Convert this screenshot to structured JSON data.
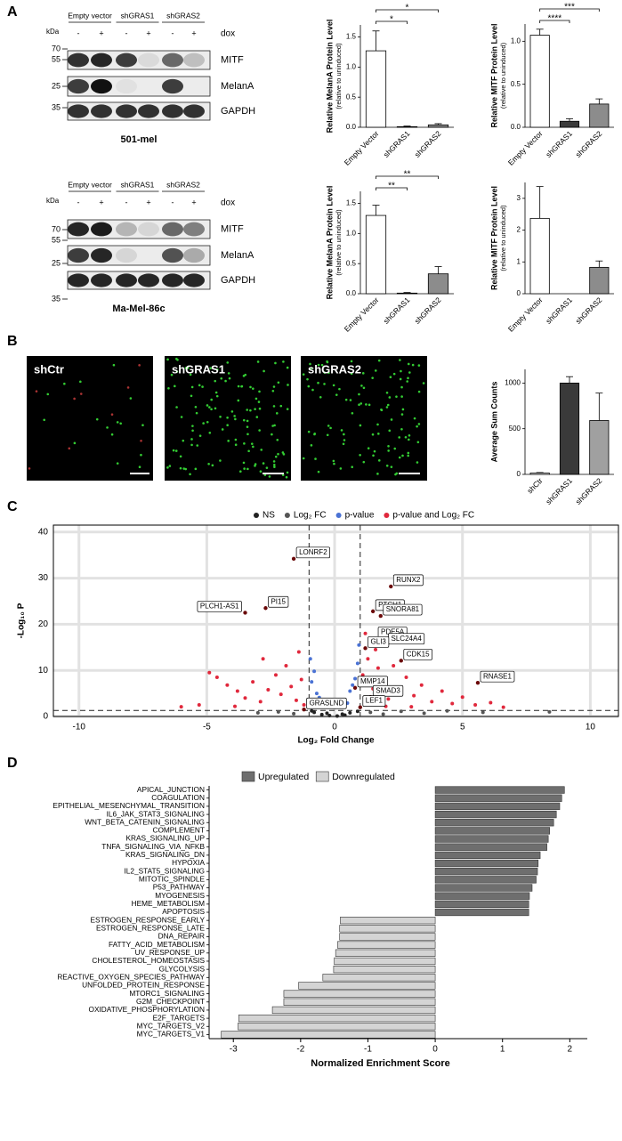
{
  "panels": [
    "A",
    "B",
    "C",
    "D"
  ],
  "blots": [
    {
      "groups": [
        "Empty vector",
        "shGRAS1",
        "shGRAS2"
      ],
      "dox_label": "dox",
      "dox": [
        "-",
        "+",
        "-",
        "+",
        "-",
        "+"
      ],
      "kda_label": "kDa",
      "markers": [
        70,
        55,
        25,
        35
      ],
      "proteins": [
        "MITF",
        "MelanA",
        "GAPDH"
      ],
      "cell_line": "501-mel"
    },
    {
      "groups": [
        "Empty vector",
        "shGRAS1",
        "shGRAS2"
      ],
      "dox_label": "dox",
      "dox": [
        "-",
        "+",
        "-",
        "+",
        "-",
        "+"
      ],
      "kda_label": "kDa",
      "markers": [
        70,
        55,
        25,
        35
      ],
      "proteins": [
        "MITF",
        "MelanA",
        "GAPDH"
      ],
      "cell_line": "Ma-Mel-86c"
    }
  ],
  "images": [
    "shCtr",
    "shGRAS1",
    "shGRAS2"
  ],
  "chart_data": [
    {
      "type": "bar",
      "ylabel": "Relative MelanA Protein Level",
      "ylabel_note": "(relative to uninduced)",
      "categories": [
        "Empty Vector",
        "shGRAS1",
        "shGRAS2"
      ],
      "values": [
        1.27,
        0.01,
        0.04
      ],
      "errors": [
        0.33,
        0.01,
        0.02
      ],
      "colors": [
        "#ffffff",
        "#3a3a3a",
        "#8c8c8c"
      ],
      "ylim": [
        0,
        1.7
      ],
      "yticks": [
        {
          "value": 0,
          "label": "0.0"
        },
        {
          "value": 0.5,
          "label": "0.5"
        },
        {
          "value": 1,
          "label": "1.0"
        },
        {
          "value": 1.5,
          "label": "1.5"
        }
      ],
      "significance": [
        {
          "label": "*",
          "between": [
            0,
            1
          ]
        },
        {
          "label": "*",
          "between": [
            0,
            2
          ]
        }
      ]
    },
    {
      "type": "bar",
      "ylabel": "Relative MITF Protein Level",
      "ylabel_note": "(relative to uninduced)",
      "categories": [
        "Empty Vector",
        "shGRAS1",
        "shGRAS2"
      ],
      "values": [
        1.07,
        0.07,
        0.27
      ],
      "errors": [
        0.07,
        0.03,
        0.06
      ],
      "colors": [
        "#ffffff",
        "#3a3a3a",
        "#8c8c8c"
      ],
      "ylim": [
        0,
        1.2
      ],
      "yticks": [
        {
          "value": 0,
          "label": "0.0"
        },
        {
          "value": 0.5,
          "label": "0.5"
        },
        {
          "value": 1,
          "label": "1.0"
        }
      ],
      "significance": [
        {
          "label": "****",
          "between": [
            0,
            1
          ]
        },
        {
          "label": "***",
          "between": [
            0,
            2
          ]
        }
      ]
    },
    {
      "type": "bar",
      "ylabel": "Relative MelanA Protein Level",
      "ylabel_note": "(relative to uninduced)",
      "categories": [
        "Empty Vector",
        "shGRAS1",
        "shGRAS2"
      ],
      "values": [
        1.3,
        0.01,
        0.33
      ],
      "errors": [
        0.17,
        0.01,
        0.12
      ],
      "colors": [
        "#ffffff",
        "#3a3a3a",
        "#8c8c8c"
      ],
      "ylim": [
        0,
        1.7
      ],
      "yticks": [
        {
          "value": 0,
          "label": "0.0"
        },
        {
          "value": 0.5,
          "label": "0.5"
        },
        {
          "value": 1,
          "label": "1.0"
        },
        {
          "value": 1.5,
          "label": "1.5"
        }
      ],
      "significance": [
        {
          "label": "**",
          "between": [
            0,
            1
          ]
        },
        {
          "label": "**",
          "between": [
            0,
            2
          ]
        }
      ]
    },
    {
      "type": "bar",
      "ylabel": "Relative MITF Protein Level",
      "ylabel_note": "(relative to uninduced)",
      "categories": [
        "Empty Vector",
        "shGRAS1",
        "shGRAS2"
      ],
      "values": [
        2.37,
        0,
        0.83
      ],
      "errors": [
        1.0,
        0,
        0.2
      ],
      "colors": [
        "#ffffff",
        "#3a3a3a",
        "#8c8c8c"
      ],
      "ylim": [
        0,
        3.5
      ],
      "yticks": [
        0,
        1,
        2,
        3
      ],
      "significance": []
    },
    {
      "type": "bar",
      "ylabel": "Average Sum Counts",
      "categories": [
        "shCtr",
        "shGRAS1",
        "shGRAS2"
      ],
      "values": [
        15,
        1000,
        590
      ],
      "errors": [
        5,
        70,
        300
      ],
      "colors": [
        "#ffffff",
        "#3a3a3a",
        "#a0a0a0"
      ],
      "ylim": [
        0,
        1150
      ],
      "yticks": [
        0,
        500,
        1000
      ],
      "significance": []
    },
    {
      "type": "scatter",
      "xlabel": "Log₂ Fold Change",
      "ylabel": "-Log₁₀ P",
      "xlim": [
        -11,
        11.1
      ],
      "ylim": [
        0,
        41.5
      ],
      "xticks": [
        -10,
        -5,
        0,
        5,
        10
      ],
      "yticks": [
        0,
        10,
        20,
        30,
        40
      ],
      "grid": true,
      "cutoffs": {
        "x": [
          -1,
          1
        ],
        "y": 1.3
      },
      "series": [
        {
          "name": "NS",
          "color": "#222222",
          "x": [
            -0.8,
            -0.5,
            -0.2,
            0.1,
            0.3,
            0.6,
            0.9,
            -0.9,
            0.4,
            -0.3
          ],
          "values": [
            0.9,
            0.4,
            0.2,
            0.1,
            0.5,
            0.8,
            1.1,
            1.2,
            0.3,
            0.7
          ]
        },
        {
          "name": "Log₂ FC",
          "color": "#555555",
          "x": [
            -3.0,
            -2.2,
            -1.6,
            1.4,
            1.9,
            2.6,
            3.5,
            5.8,
            8.4,
            4.4
          ],
          "values": [
            0.8,
            1.0,
            0.6,
            0.9,
            0.5,
            1.1,
            0.7,
            0.9,
            1.0,
            1.2
          ]
        },
        {
          "name": "p-value",
          "color": "#4a72d4",
          "x": [
            -0.9,
            -0.7,
            -0.5,
            -0.3,
            -0.8,
            -0.6,
            0.2,
            0.4,
            0.6,
            0.8,
            0.9,
            0.7,
            0.5,
            -0.95,
            0.95
          ],
          "values": [
            7.5,
            5.0,
            3.2,
            2.1,
            9.8,
            4.1,
            2.4,
            3.6,
            5.5,
            8.2,
            11.5,
            6.8,
            2.9,
            12.5,
            15.5
          ]
        },
        {
          "name": "p-value and Log₂ FC",
          "color": "#e0283c",
          "x": [
            -4.9,
            -4.6,
            -4.2,
            -3.8,
            -3.5,
            -3.2,
            -2.9,
            -2.6,
            -2.3,
            -2.1,
            -1.9,
            -1.7,
            -1.5,
            -1.3,
            -1.2,
            -5.3,
            -6.0,
            -2.8,
            -1.4,
            -3.9,
            1.1,
            1.3,
            1.5,
            1.7,
            1.9,
            2.1,
            2.3,
            2.5,
            2.8,
            3.1,
            3.4,
            3.8,
            4.2,
            4.6,
            5.0,
            5.5,
            6.1,
            6.6,
            1.2,
            1.6,
            2.0,
            3.0
          ],
          "values": [
            9.5,
            8.5,
            6.8,
            5.5,
            4.0,
            7.5,
            3.2,
            5.8,
            9.0,
            4.8,
            11.0,
            6.5,
            3.5,
            8.0,
            2.5,
            2.5,
            2.1,
            12.5,
            14.0,
            2.2,
            9.0,
            12.5,
            6.0,
            10.5,
            7.8,
            3.8,
            11.0,
            5.2,
            8.5,
            4.5,
            6.8,
            3.2,
            5.5,
            2.8,
            4.2,
            2.5,
            3.0,
            2.0,
            18.0,
            14.5,
            2.2,
            2.1
          ]
        }
      ],
      "annotations": [
        {
          "text": "LONRF2",
          "x": -1.6,
          "y": 34.2
        },
        {
          "text": "PI15",
          "x": -2.7,
          "y": 23.5
        },
        {
          "text": "PLCH1-AS1",
          "x": -3.5,
          "y": 22.5
        },
        {
          "text": "RUNX2",
          "x": 2.2,
          "y": 28.2
        },
        {
          "text": "PTCH1",
          "x": 1.5,
          "y": 22.8
        },
        {
          "text": "SNORA81",
          "x": 1.8,
          "y": 21.8
        },
        {
          "text": "PDE5A",
          "x": 1.6,
          "y": 16.9
        },
        {
          "text": "SLC24A4",
          "x": 2.0,
          "y": 15.5
        },
        {
          "text": "GLI3",
          "x": 1.2,
          "y": 14.8
        },
        {
          "text": "CDK15",
          "x": 2.6,
          "y": 12.1
        },
        {
          "text": "RNASE1",
          "x": 5.6,
          "y": 7.3
        },
        {
          "text": "MMP14",
          "x": 0.8,
          "y": 6.2
        },
        {
          "text": "SMAD3",
          "x": 1.4,
          "y": 4.2
        },
        {
          "text": "LEF1",
          "x": 1.0,
          "y": 2.0
        },
        {
          "text": "GRASLND",
          "x": -1.2,
          "y": 1.5
        }
      ]
    },
    {
      "type": "barh",
      "xlabel": "Normalized Enrichment Score",
      "xlim": [
        -3.36,
        2.26
      ],
      "xticks": [
        -3,
        -2,
        -1,
        0,
        1,
        2
      ],
      "legend": [
        {
          "name": "Upregulated",
          "color": "#6e6e6e"
        },
        {
          "name": "Downregulated",
          "color": "#d4d4d4"
        }
      ],
      "categories": [
        "APICAL_JUNCTION",
        "COAGULATION",
        "EPITHELIAL_MESENCHYMAL_TRANSITION",
        "IL6_JAK_STAT3_SIGNALING",
        "WNT_BETA_CATENIN_SIGNALING",
        "COMPLEMENT",
        "KRAS_SIGNALING_UP",
        "TNFA_SIGNALING_VIA_NFKB",
        "KRAS_SIGNALING_DN",
        "HYPOXIA",
        "IL2_STAT5_SIGNALING",
        "MITOTIC_SPINDLE",
        "P53_PATHWAY",
        "MYOGENESIS",
        "HEME_METABOLISM",
        "APOPTOSIS",
        "ESTROGEN_RESPONSE_EARLY",
        "ESTROGEN_RESPONSE_LATE",
        "DNA_REPAIR",
        "FATTY_ACID_METABOLISM",
        "UV_RESPONSE_UP",
        "CHOLESTEROL_HOMEOSTASIS",
        "GLYCOLYSIS",
        "REACTIVE_OXYGEN_SPECIES_PATHWAY",
        "UNFOLDED_PROTEIN_RESPONSE",
        "MTORC1_SIGNALING",
        "G2M_CHECKPOINT",
        "OXIDATIVE_PHOSPHORYLATION",
        "E2F_TARGETS",
        "MYC_TARGETS_V2",
        "MYC_TARGETS_V1"
      ],
      "values": [
        1.92,
        1.88,
        1.85,
        1.8,
        1.76,
        1.7,
        1.68,
        1.66,
        1.56,
        1.53,
        1.52,
        1.5,
        1.44,
        1.4,
        1.39,
        1.39,
        -1.41,
        -1.42,
        -1.42,
        -1.45,
        -1.48,
        -1.5,
        -1.51,
        -1.67,
        -2.03,
        -2.25,
        -2.25,
        -2.42,
        -2.92,
        -2.93,
        -3.18
      ]
    }
  ]
}
